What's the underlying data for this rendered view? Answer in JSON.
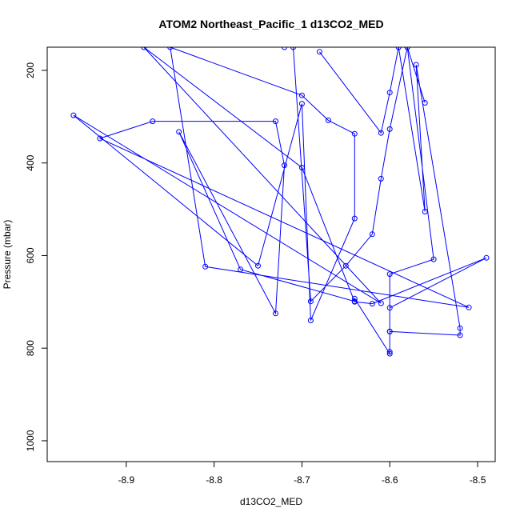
{
  "chart_data": {
    "type": "line",
    "title": "ATOM2 Northeast_Pacific_1 d13CO2_MED",
    "xlabel": "d13CO2_MED",
    "ylabel": "Pressure (mbar)",
    "xlim": [
      -8.99,
      -8.48
    ],
    "ylim": [
      1045,
      150
    ],
    "y_reversed": true,
    "xticks": [
      -8.9,
      -8.8,
      -8.7,
      -8.6,
      -8.5
    ],
    "xtick_labels": [
      "-8.9",
      "-8.8",
      "-8.7",
      "-8.6",
      "-8.5"
    ],
    "yticks": [
      200,
      400,
      600,
      800,
      1000
    ],
    "ytick_labels": [
      "200",
      "400",
      "600",
      "800",
      "1000"
    ],
    "grid": false,
    "markers": "open-circle",
    "series": [
      {
        "color": "#0000ff",
        "x": [
          -8.68,
          -8.61,
          -8.6,
          -8.59,
          -8.56,
          -8.57,
          -8.52,
          -8.52,
          -8.6,
          -8.6,
          -8.49,
          -8.62,
          -8.64,
          -8.7,
          -8.88,
          -8.61,
          -8.96,
          -8.75,
          -8.7,
          -8.69,
          -8.64,
          -8.64,
          -8.67,
          -8.7,
          -8.85,
          -8.81,
          -8.51,
          -8.93,
          -8.87,
          -8.73,
          -8.72,
          -8.73,
          -8.84,
          -8.77,
          -8.64,
          -8.64,
          -8.6,
          -8.6,
          -8.6,
          -8.6,
          -8.55,
          -8.58,
          -8.56,
          -8.58,
          -8.6,
          -8.61,
          -8.62,
          -8.65,
          -8.69,
          -8.71,
          -8.72
        ],
        "y": [
          160,
          335,
          248,
          150,
          505,
          188,
          757,
          772,
          764,
          713,
          605,
          704,
          700,
          410,
          150,
          703,
          297,
          622,
          272,
          740,
          520,
          337,
          308,
          254,
          150,
          624,
          712,
          347,
          310,
          310,
          405,
          725,
          333,
          630,
          699,
          693,
          812,
          808,
          764,
          640,
          608,
          150,
          270,
          150,
          327,
          434,
          554,
          622,
          699,
          150,
          150
        ]
      }
    ]
  }
}
